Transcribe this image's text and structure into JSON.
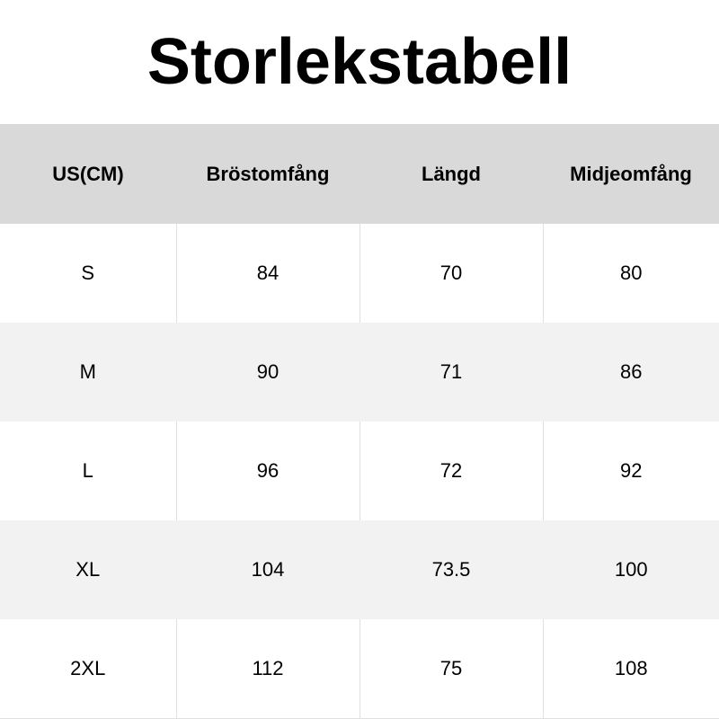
{
  "title": "Storlekstabell",
  "table": {
    "headers": [
      "US(CM)",
      "Bröstomfång",
      "Längd",
      "Midjeomfång"
    ],
    "rows": [
      [
        "S",
        "84",
        "70",
        "80"
      ],
      [
        "M",
        "90",
        "71",
        "86"
      ],
      [
        "L",
        "96",
        "72",
        "92"
      ],
      [
        "XL",
        "104",
        "73.5",
        "100"
      ],
      [
        "2XL",
        "112",
        "75",
        "108"
      ]
    ]
  },
  "colors": {
    "header_bg": "#d9d9d9",
    "alt_row_bg": "#f2f2f2",
    "grid_line": "#e0e0e0"
  }
}
